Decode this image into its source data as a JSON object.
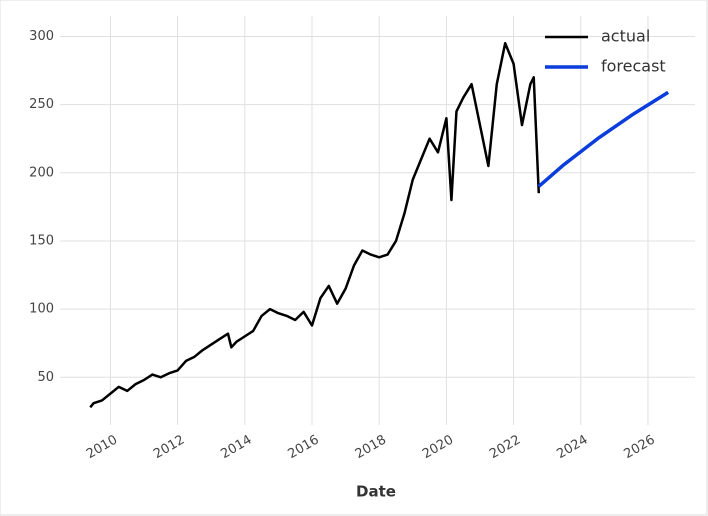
{
  "chart_data": {
    "type": "line",
    "xlabel": "Date",
    "xlim": [
      2008.5,
      2027.4
    ],
    "xticks": [
      2010,
      2012,
      2014,
      2016,
      2018,
      2020,
      2022,
      2024,
      2026
    ],
    "ylim": [
      15,
      315
    ],
    "yticks": [
      50,
      100,
      150,
      200,
      250,
      300
    ],
    "grid": true,
    "legend": "upper right",
    "series": [
      {
        "name": "actual",
        "color": "#000000",
        "x": [
          2009.4,
          2009.5,
          2009.75,
          2010,
          2010.25,
          2010.5,
          2010.75,
          2011,
          2011.25,
          2011.5,
          2011.75,
          2012,
          2012.25,
          2012.5,
          2012.75,
          2013,
          2013.25,
          2013.5,
          2013.6,
          2013.75,
          2014,
          2014.25,
          2014.5,
          2014.75,
          2015,
          2015.25,
          2015.5,
          2015.75,
          2016,
          2016.25,
          2016.5,
          2016.75,
          2017,
          2017.25,
          2017.5,
          2017.75,
          2018,
          2018.25,
          2018.5,
          2018.75,
          2019,
          2019.25,
          2019.5,
          2019.75,
          2020,
          2020.15,
          2020.3,
          2020.5,
          2020.75,
          2021,
          2021.25,
          2021.5,
          2021.75,
          2022,
          2022.25,
          2022.5,
          2022.6,
          2022.75
        ],
        "values": [
          28,
          31,
          33,
          38,
          43,
          40,
          45,
          48,
          52,
          50,
          53,
          55,
          62,
          65,
          70,
          74,
          78,
          82,
          72,
          76,
          80,
          84,
          95,
          100,
          97,
          95,
          92,
          98,
          88,
          108,
          117,
          104,
          115,
          132,
          143,
          140,
          138,
          140,
          150,
          170,
          195,
          210,
          225,
          215,
          240,
          180,
          245,
          255,
          265,
          235,
          205,
          265,
          295,
          280,
          235,
          265,
          270,
          185
        ]
      },
      {
        "name": "forecast",
        "color": "#0a3ddb",
        "x": [
          2022.75,
          2023.5,
          2024.5,
          2025.5,
          2026.6
        ],
        "values": [
          190,
          206,
          225,
          242,
          259
        ]
      }
    ]
  }
}
